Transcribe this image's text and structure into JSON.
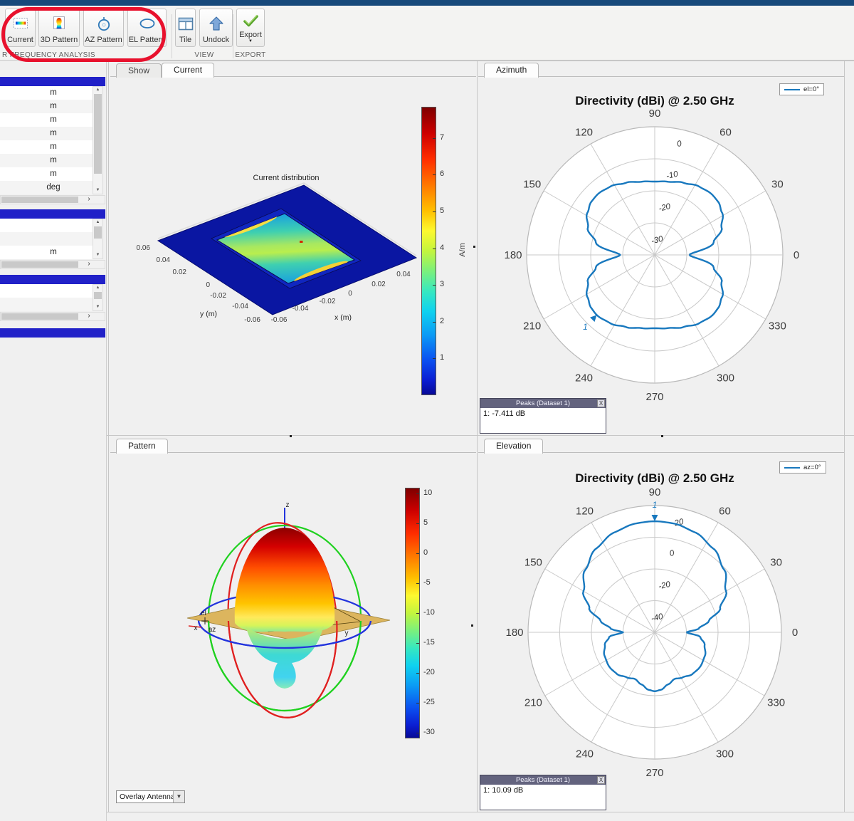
{
  "window": {
    "titlebar_color": "#17497b"
  },
  "colors": {
    "accent_blue": "#1878be",
    "sidebar_header": "#2121c8",
    "annotation_red": "#e8112d",
    "peaks_titlebar": "#63637e",
    "figure_bg": "#f0f0f0"
  },
  "toolbar": {
    "buttons": [
      {
        "label": "Current",
        "icon": "current-plot-icon"
      },
      {
        "label": "3D Pattern",
        "icon": "pattern-3d-icon"
      },
      {
        "label": "AZ Pattern",
        "icon": "az-pattern-icon"
      },
      {
        "label": "EL Pattern",
        "icon": "el-pattern-icon"
      },
      {
        "label": "Tile",
        "icon": "tile-icon"
      },
      {
        "label": "Undock",
        "icon": "undock-icon"
      },
      {
        "label": "Export",
        "icon": "export-icon",
        "has_dropdown": true
      }
    ],
    "sections": [
      {
        "label": "R FREQUENCY ANALYSIS"
      },
      {
        "label": "VIEW"
      },
      {
        "label": "EXPORT"
      }
    ]
  },
  "sidebar": {
    "sections": [
      {
        "rows": [
          "m",
          "m",
          "m",
          "m",
          "m",
          "m",
          "m",
          "deg"
        ]
      },
      {
        "rows": [
          "",
          "",
          "m"
        ]
      },
      {
        "rows": [
          "",
          ""
        ]
      },
      {
        "rows": []
      }
    ],
    "hscroll_button": "›"
  },
  "panels": {
    "current": {
      "tabs": [
        {
          "label": "Show",
          "active": false
        },
        {
          "label": "Current",
          "active": true
        }
      ]
    },
    "azimuth": {
      "tabs": [
        {
          "label": "Azimuth",
          "active": true
        }
      ],
      "peaks": {
        "title": "Peaks (Dataset 1)",
        "close": "X",
        "entries": [
          "1: -7.411 dB"
        ]
      }
    },
    "pattern": {
      "tabs": [
        {
          "label": "Pattern",
          "active": true
        }
      ],
      "overlay_dropdown": {
        "value": "Overlay Antenna"
      }
    },
    "elevation": {
      "tabs": [
        {
          "label": "Elevation",
          "active": true
        }
      ],
      "peaks": {
        "title": "Peaks (Dataset 1)",
        "close": "X",
        "entries": [
          "1: 10.09 dB"
        ]
      }
    }
  },
  "chart_data": [
    {
      "id": "current_distribution",
      "type": "surface-3d",
      "title": "Current distribution",
      "xlabel": "x (m)",
      "ylabel": "y (m)",
      "x_ticks": [
        "0.04",
        "0.02",
        "0",
        "-0.02",
        "-0.04",
        "-0.06"
      ],
      "y_ticks": [
        "0.06",
        "0.04",
        "0.02",
        "0",
        "-0.02",
        "-0.04",
        "-0.06"
      ],
      "colorbar": {
        "label": "A/m",
        "ticks": [
          7,
          6,
          5,
          4,
          3,
          2,
          1
        ],
        "range": [
          0,
          7.85
        ],
        "colormap": "jet"
      },
      "description": "Current density of rectangular patch antenna on square ground plane; hot spots (~7 A/m, yellow) along patch edges, ground plane ~0 A/m (dark blue)"
    },
    {
      "id": "azimuth_pattern",
      "type": "polar-line",
      "title": "Directivity (dBi) @ 2.50 GHz",
      "legend": [
        {
          "label": "el=0°",
          "color": "#1878be"
        }
      ],
      "angle_ticks_deg": [
        0,
        30,
        60,
        90,
        120,
        150,
        180,
        210,
        240,
        270,
        300,
        330
      ],
      "r_tick_labels": [
        "0",
        "-10",
        "-20",
        "-30"
      ],
      "r_axis": {
        "min": -40,
        "max": 10
      },
      "series": [
        {
          "name": "el=0°",
          "points": [
            [
              0,
              -26.5
            ],
            [
              12,
              -16.5
            ],
            [
              22,
              -11.8
            ],
            [
              32,
              -9
            ],
            [
              40,
              -7.7
            ],
            [
              47,
              -7.5
            ],
            [
              57,
              -8.2
            ],
            [
              68,
              -9.7
            ],
            [
              80,
              -11
            ],
            [
              90,
              -11.4
            ],
            [
              100,
              -11
            ],
            [
              112,
              -9.7
            ],
            [
              123,
              -8.2
            ],
            [
              133,
              -7.5
            ],
            [
              140,
              -7.7
            ],
            [
              148,
              -9
            ],
            [
              158,
              -11.8
            ],
            [
              168,
              -16.5
            ],
            [
              180,
              -26.5
            ],
            [
              192,
              -16.5
            ],
            [
              202,
              -11.8
            ],
            [
              212,
              -9
            ],
            [
              220,
              -7.7
            ],
            [
              226,
              -7.411
            ],
            [
              237,
              -8.2
            ],
            [
              248,
              -9.7
            ],
            [
              260,
              -11
            ],
            [
              270,
              -11.4
            ],
            [
              280,
              -11
            ],
            [
              292,
              -9.7
            ],
            [
              303,
              -8.2
            ],
            [
              314,
              -7.411
            ],
            [
              320,
              -7.7
            ],
            [
              328,
              -9
            ],
            [
              338,
              -11.8
            ],
            [
              348,
              -16.5
            ],
            [
              360,
              -26.5
            ]
          ]
        }
      ],
      "peak_marker": {
        "label": "1",
        "angle_deg": 226,
        "value_db": -7.411
      }
    },
    {
      "id": "pattern_3d",
      "type": "surface-3d",
      "axis_labels": [
        "z",
        "x",
        "y",
        "az",
        "el"
      ],
      "colorbar": {
        "ticks": [
          10,
          5,
          0,
          -5,
          -10,
          -15,
          -20,
          -25,
          -30
        ],
        "range": [
          -31,
          11
        ],
        "colormap": "jet"
      },
      "overlay": "Overlay Antenna",
      "description": "3D directivity pattern: main lobe toward +z (~10 dBi, dark red), minor back lobes below ground plane (cyan, ~-15 dB); green/red elevation circles and blue azimuth circle with tan ground plane"
    },
    {
      "id": "elevation_pattern",
      "type": "polar-line",
      "title": "Directivity (dBi) @ 2.50 GHz",
      "legend": [
        {
          "label": "az=0°",
          "color": "#1878be"
        }
      ],
      "angle_ticks_deg": [
        0,
        30,
        60,
        90,
        120,
        150,
        180,
        210,
        240,
        270,
        300,
        330
      ],
      "r_tick_labels": [
        "20",
        "0",
        "-20",
        "-40"
      ],
      "r_axis": {
        "min": -60,
        "max": 20
      },
      "series": [
        {
          "name": "az=0°",
          "points": [
            [
              0,
              -40
            ],
            [
              5,
              -32
            ],
            [
              12,
              -25
            ],
            [
              20,
              -16
            ],
            [
              30,
              -8
            ],
            [
              42,
              -1
            ],
            [
              55,
              4.5
            ],
            [
              68,
              8
            ],
            [
              80,
              9.7
            ],
            [
              90,
              10.09
            ],
            [
              100,
              9.7
            ],
            [
              112,
              8
            ],
            [
              125,
              4.5
            ],
            [
              138,
              -1
            ],
            [
              150,
              -8
            ],
            [
              160,
              -16
            ],
            [
              168,
              -25
            ],
            [
              175,
              -32
            ],
            [
              180,
              -40
            ],
            [
              186,
              -31
            ],
            [
              194,
              -27.5
            ],
            [
              205,
              -25
            ],
            [
              218,
              -24
            ],
            [
              228,
              -24.5
            ],
            [
              238,
              -26.5
            ],
            [
              247,
              -28
            ],
            [
              256,
              -26
            ],
            [
              264,
              -23.5
            ],
            [
              270,
              -22.8
            ],
            [
              276,
              -23.5
            ],
            [
              284,
              -26
            ],
            [
              293,
              -28
            ],
            [
              302,
              -26.5
            ],
            [
              312,
              -24.5
            ],
            [
              322,
              -24
            ],
            [
              335,
              -25
            ],
            [
              346,
              -27.5
            ],
            [
              354,
              -31
            ],
            [
              360,
              -40
            ]
          ]
        }
      ],
      "peak_marker": {
        "label": "1",
        "angle_deg": 90,
        "value_db": 10.09
      }
    }
  ]
}
